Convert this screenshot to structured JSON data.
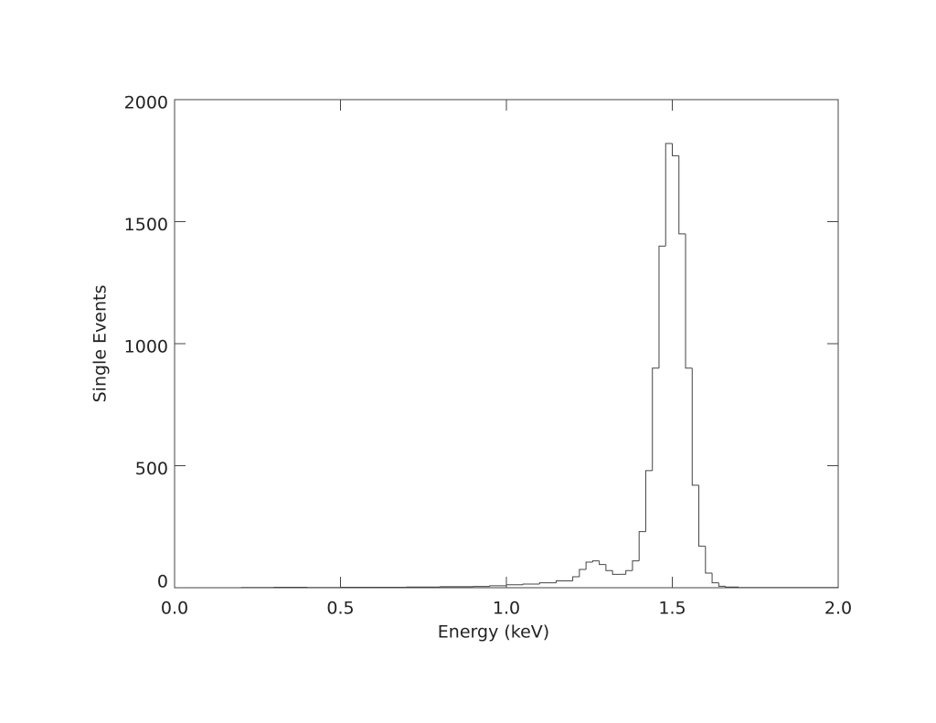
{
  "chart_data": {
    "type": "histogram",
    "x_label": "Energy (keV)",
    "y_label": "Single Events",
    "bins": [
      0.2,
      0.3,
      0.4,
      0.5,
      0.6,
      0.7,
      0.8,
      0.9,
      0.95,
      1.0,
      1.05,
      1.1,
      1.15,
      1.2,
      1.22,
      1.24,
      1.26,
      1.28,
      1.3,
      1.32,
      1.34,
      1.36,
      1.38,
      1.4,
      1.42,
      1.44,
      1.46,
      1.48,
      1.5,
      1.52,
      1.54,
      1.56,
      1.58,
      1.6,
      1.62,
      1.64,
      1.66,
      1.7,
      1.8,
      1.9,
      2.0
    ],
    "values": [
      1,
      2,
      1,
      2,
      2,
      3,
      4,
      5,
      8,
      12,
      15,
      20,
      28,
      45,
      75,
      105,
      110,
      95,
      70,
      55,
      55,
      70,
      110,
      230,
      480,
      900,
      1400,
      1820,
      1770,
      1450,
      900,
      420,
      170,
      60,
      20,
      6,
      3,
      1,
      1,
      1
    ],
    "color": "#444444",
    "xlim": [
      0,
      2
    ],
    "xticks": [
      {
        "value": 0,
        "label": "0.0"
      },
      0.5,
      {
        "value": 1,
        "label": "1.0"
      },
      1.5,
      {
        "value": 2,
        "label": "2.0"
      }
    ],
    "ylim": [
      0,
      2000
    ],
    "yticks": [
      0,
      500,
      1000,
      1500,
      2000
    ]
  }
}
